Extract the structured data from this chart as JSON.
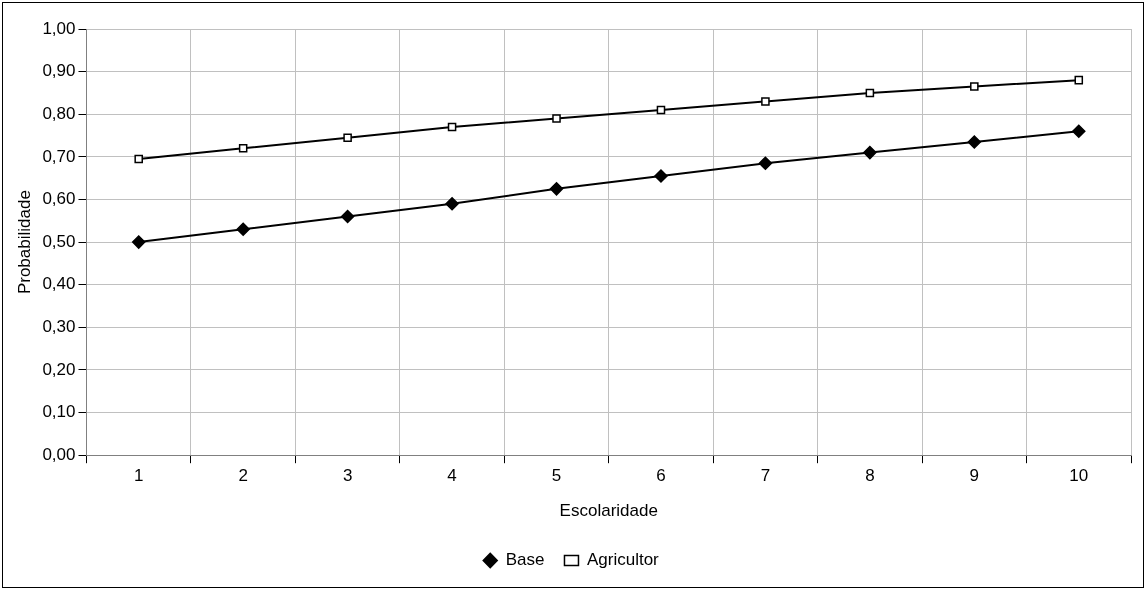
{
  "chart_data": {
    "type": "line",
    "xlabel": "Escolaridade",
    "ylabel": "Probabilidade",
    "categories": [
      "1",
      "2",
      "3",
      "4",
      "5",
      "6",
      "7",
      "8",
      "9",
      "10"
    ],
    "series": [
      {
        "name": "Base",
        "color": "#000000",
        "marker": "diamond",
        "values": [
          0.5,
          0.53,
          0.56,
          0.59,
          0.625,
          0.655,
          0.685,
          0.71,
          0.735,
          0.76
        ]
      },
      {
        "name": "Agricultor",
        "color": "#000000",
        "marker": "square",
        "values": [
          0.695,
          0.72,
          0.745,
          0.77,
          0.79,
          0.81,
          0.83,
          0.85,
          0.865,
          0.88
        ]
      }
    ],
    "ylim": [
      0,
      1
    ],
    "yticks": [
      {
        "value": 0,
        "label": "0,00"
      },
      {
        "value": 0.1,
        "label": "0,10"
      },
      {
        "value": 0.2,
        "label": "0,20"
      },
      {
        "value": 0.3,
        "label": "0,30"
      },
      {
        "value": 0.4,
        "label": "0,40"
      },
      {
        "value": 0.5,
        "label": "0,50"
      },
      {
        "value": 0.6,
        "label": "0,60"
      },
      {
        "value": 0.7,
        "label": "0,70"
      },
      {
        "value": 0.8,
        "label": "0,80"
      },
      {
        "value": 0.9,
        "label": "0,90"
      },
      {
        "value": 1,
        "label": "1,00"
      }
    ],
    "grid": true,
    "legend": "bottom",
    "line_style": "solid"
  }
}
